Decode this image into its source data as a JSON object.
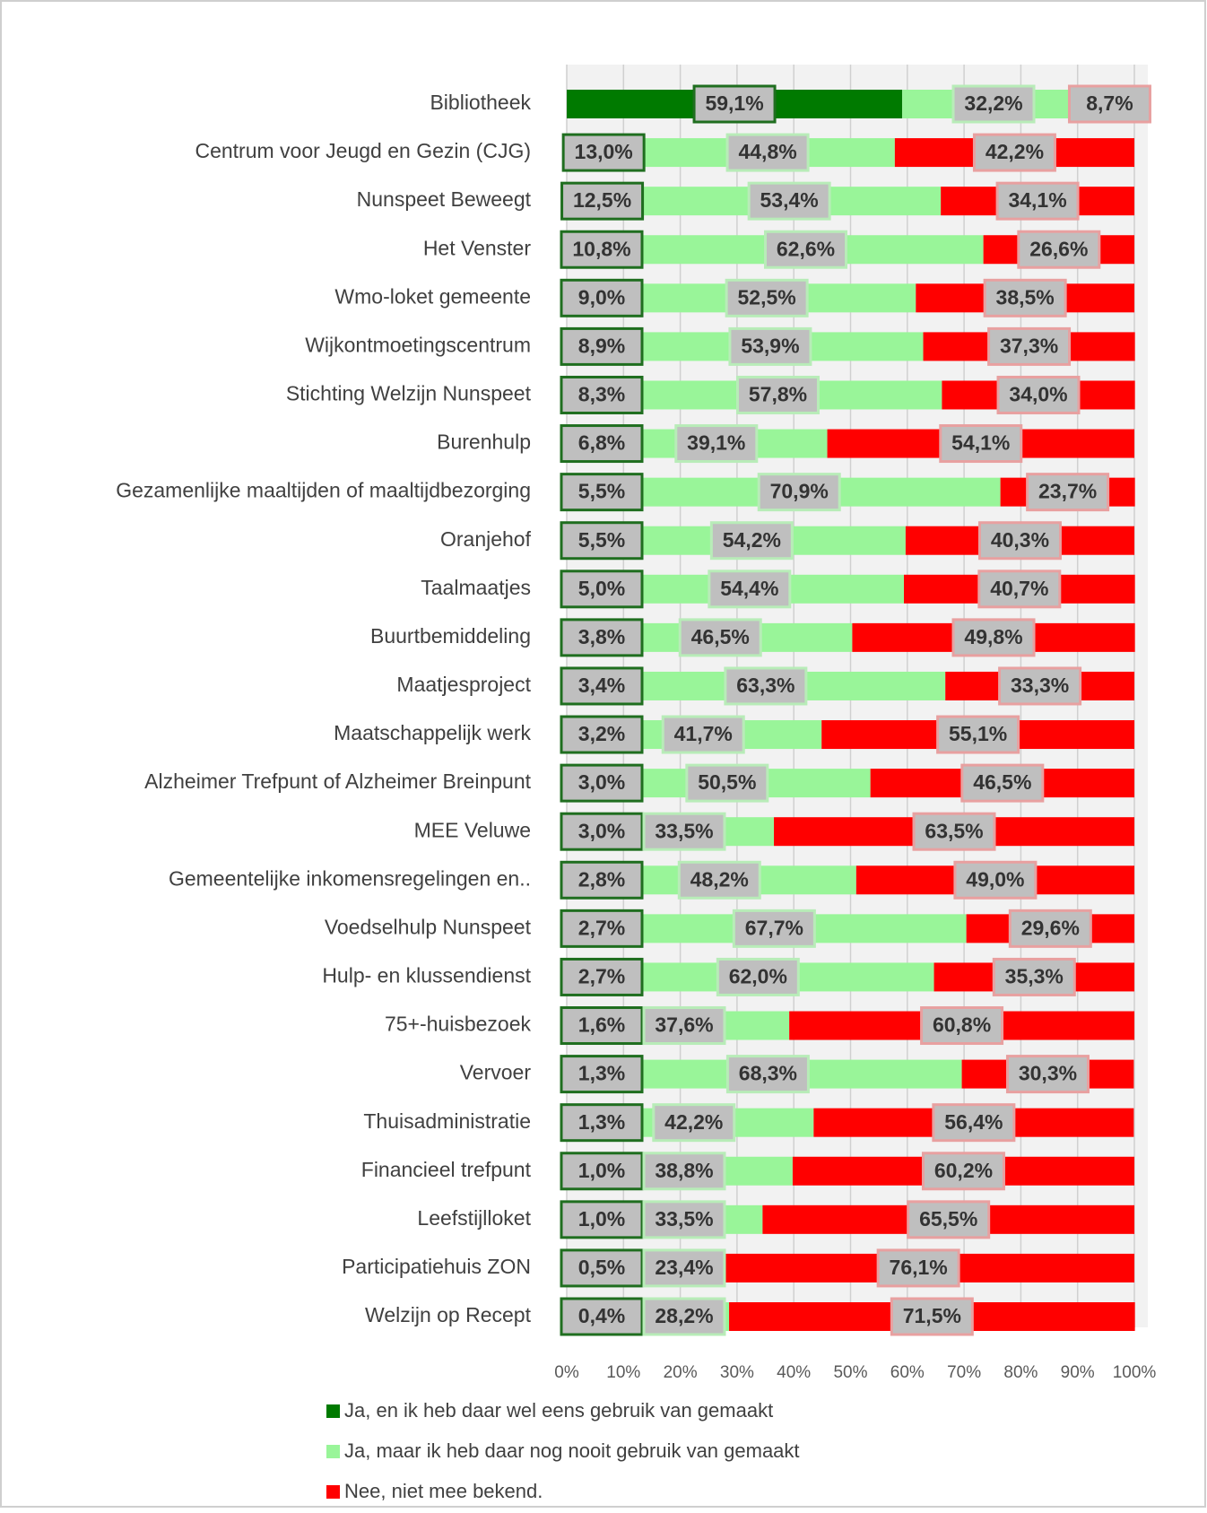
{
  "chart_data": {
    "type": "stacked_barh",
    "categories": [
      "Bibliotheek",
      "Centrum voor Jeugd en Gezin (CJG)",
      "Nunspeet Beweegt",
      "Het Venster",
      "Wmo-loket gemeente",
      "Wijkontmoetingscentrum",
      "Stichting Welzijn Nunspeet",
      "Burenhulp",
      "Gezamenlijke maaltijden of maaltijdbezorging",
      "Oranjehof",
      "Taalmaatjes",
      "Buurtbemiddeling",
      "Maatjesproject",
      "Maatschappelijk werk",
      "Alzheimer Trefpunt of Alzheimer Breinpunt",
      "MEE Veluwe",
      "Gemeentelijke inkomensregelingen en..",
      "Voedselhulp Nunspeet",
      "Hulp- en klussendienst",
      "75+-huisbezoek",
      "Vervoer",
      "Thuisadministratie",
      "Financieel trefpunt",
      "Leefstijlloket",
      "Participatiehuis ZON",
      "Welzijn op Recept"
    ],
    "series": [
      {
        "name": "Ja, en ik heb daar wel eens gebruik van gemaakt",
        "color": "#007a00",
        "values": [
          59.1,
          13.0,
          12.5,
          10.8,
          9.0,
          8.9,
          8.3,
          6.8,
          5.5,
          5.5,
          5.0,
          3.8,
          3.4,
          3.2,
          3.0,
          3.0,
          2.8,
          2.7,
          2.7,
          1.6,
          1.3,
          1.3,
          1.0,
          1.0,
          0.5,
          0.4
        ],
        "value_labels": [
          "59,1%",
          "13,0%",
          "12,5%",
          "10,8%",
          "9,0%",
          "8,9%",
          "8,3%",
          "6,8%",
          "5,5%",
          "5,5%",
          "5,0%",
          "3,8%",
          "3,4%",
          "3,2%",
          "3,0%",
          "3,0%",
          "2,8%",
          "2,7%",
          "2,7%",
          "1,6%",
          "1,3%",
          "1,3%",
          "1,0%",
          "1,0%",
          "0,5%",
          "0,4%"
        ]
      },
      {
        "name": "Ja, maar ik heb daar nog nooit gebruik van gemaakt",
        "color": "#99f599",
        "values": [
          32.2,
          44.8,
          53.4,
          62.6,
          52.5,
          53.9,
          57.8,
          39.1,
          70.9,
          54.2,
          54.4,
          46.5,
          63.3,
          41.7,
          50.5,
          33.5,
          48.2,
          67.7,
          62.0,
          37.6,
          68.3,
          42.2,
          38.8,
          33.5,
          23.4,
          28.2
        ],
        "value_labels": [
          "32,2%",
          "44,8%",
          "53,4%",
          "62,6%",
          "52,5%",
          "53,9%",
          "57,8%",
          "39,1%",
          "70,9%",
          "54,2%",
          "54,4%",
          "46,5%",
          "63,3%",
          "41,7%",
          "50,5%",
          "33,5%",
          "48,2%",
          "67,7%",
          "62,0%",
          "37,6%",
          "68,3%",
          "42,2%",
          "38,8%",
          "33,5%",
          "23,4%",
          "28,2%"
        ]
      },
      {
        "name": "Nee, niet mee bekend.",
        "color": "#ff0000",
        "values": [
          8.7,
          42.2,
          34.1,
          26.6,
          38.5,
          37.3,
          34.0,
          54.1,
          23.7,
          40.3,
          40.7,
          49.8,
          33.3,
          55.1,
          46.5,
          63.5,
          49.0,
          29.6,
          35.3,
          60.8,
          30.3,
          56.4,
          60.2,
          65.5,
          76.1,
          71.5
        ],
        "value_labels": [
          "8,7%",
          "42,2%",
          "34,1%",
          "26,6%",
          "38,5%",
          "37,3%",
          "34,0%",
          "54,1%",
          "23,7%",
          "40,3%",
          "40,7%",
          "49,8%",
          "33,3%",
          "55,1%",
          "46,5%",
          "63,5%",
          "49,0%",
          "29,6%",
          "35,3%",
          "60,8%",
          "30,3%",
          "56,4%",
          "60,2%",
          "65,5%",
          "76,1%",
          "71,5%"
        ]
      }
    ],
    "xlim": [
      0,
      100
    ],
    "xticks": [
      {
        "value": 0,
        "label": "0%"
      },
      {
        "value": 10,
        "label": "10%"
      },
      {
        "value": 20,
        "label": "20%"
      },
      {
        "value": 30,
        "label": "30%"
      },
      {
        "value": 40,
        "label": "40%"
      },
      {
        "value": 50,
        "label": "50%"
      },
      {
        "value": 60,
        "label": "60%"
      },
      {
        "value": 70,
        "label": "70%"
      },
      {
        "value": 80,
        "label": "80%"
      },
      {
        "value": 90,
        "label": "90%"
      },
      {
        "value": 100,
        "label": "100%"
      }
    ],
    "grid": true,
    "legend": "bottom"
  }
}
